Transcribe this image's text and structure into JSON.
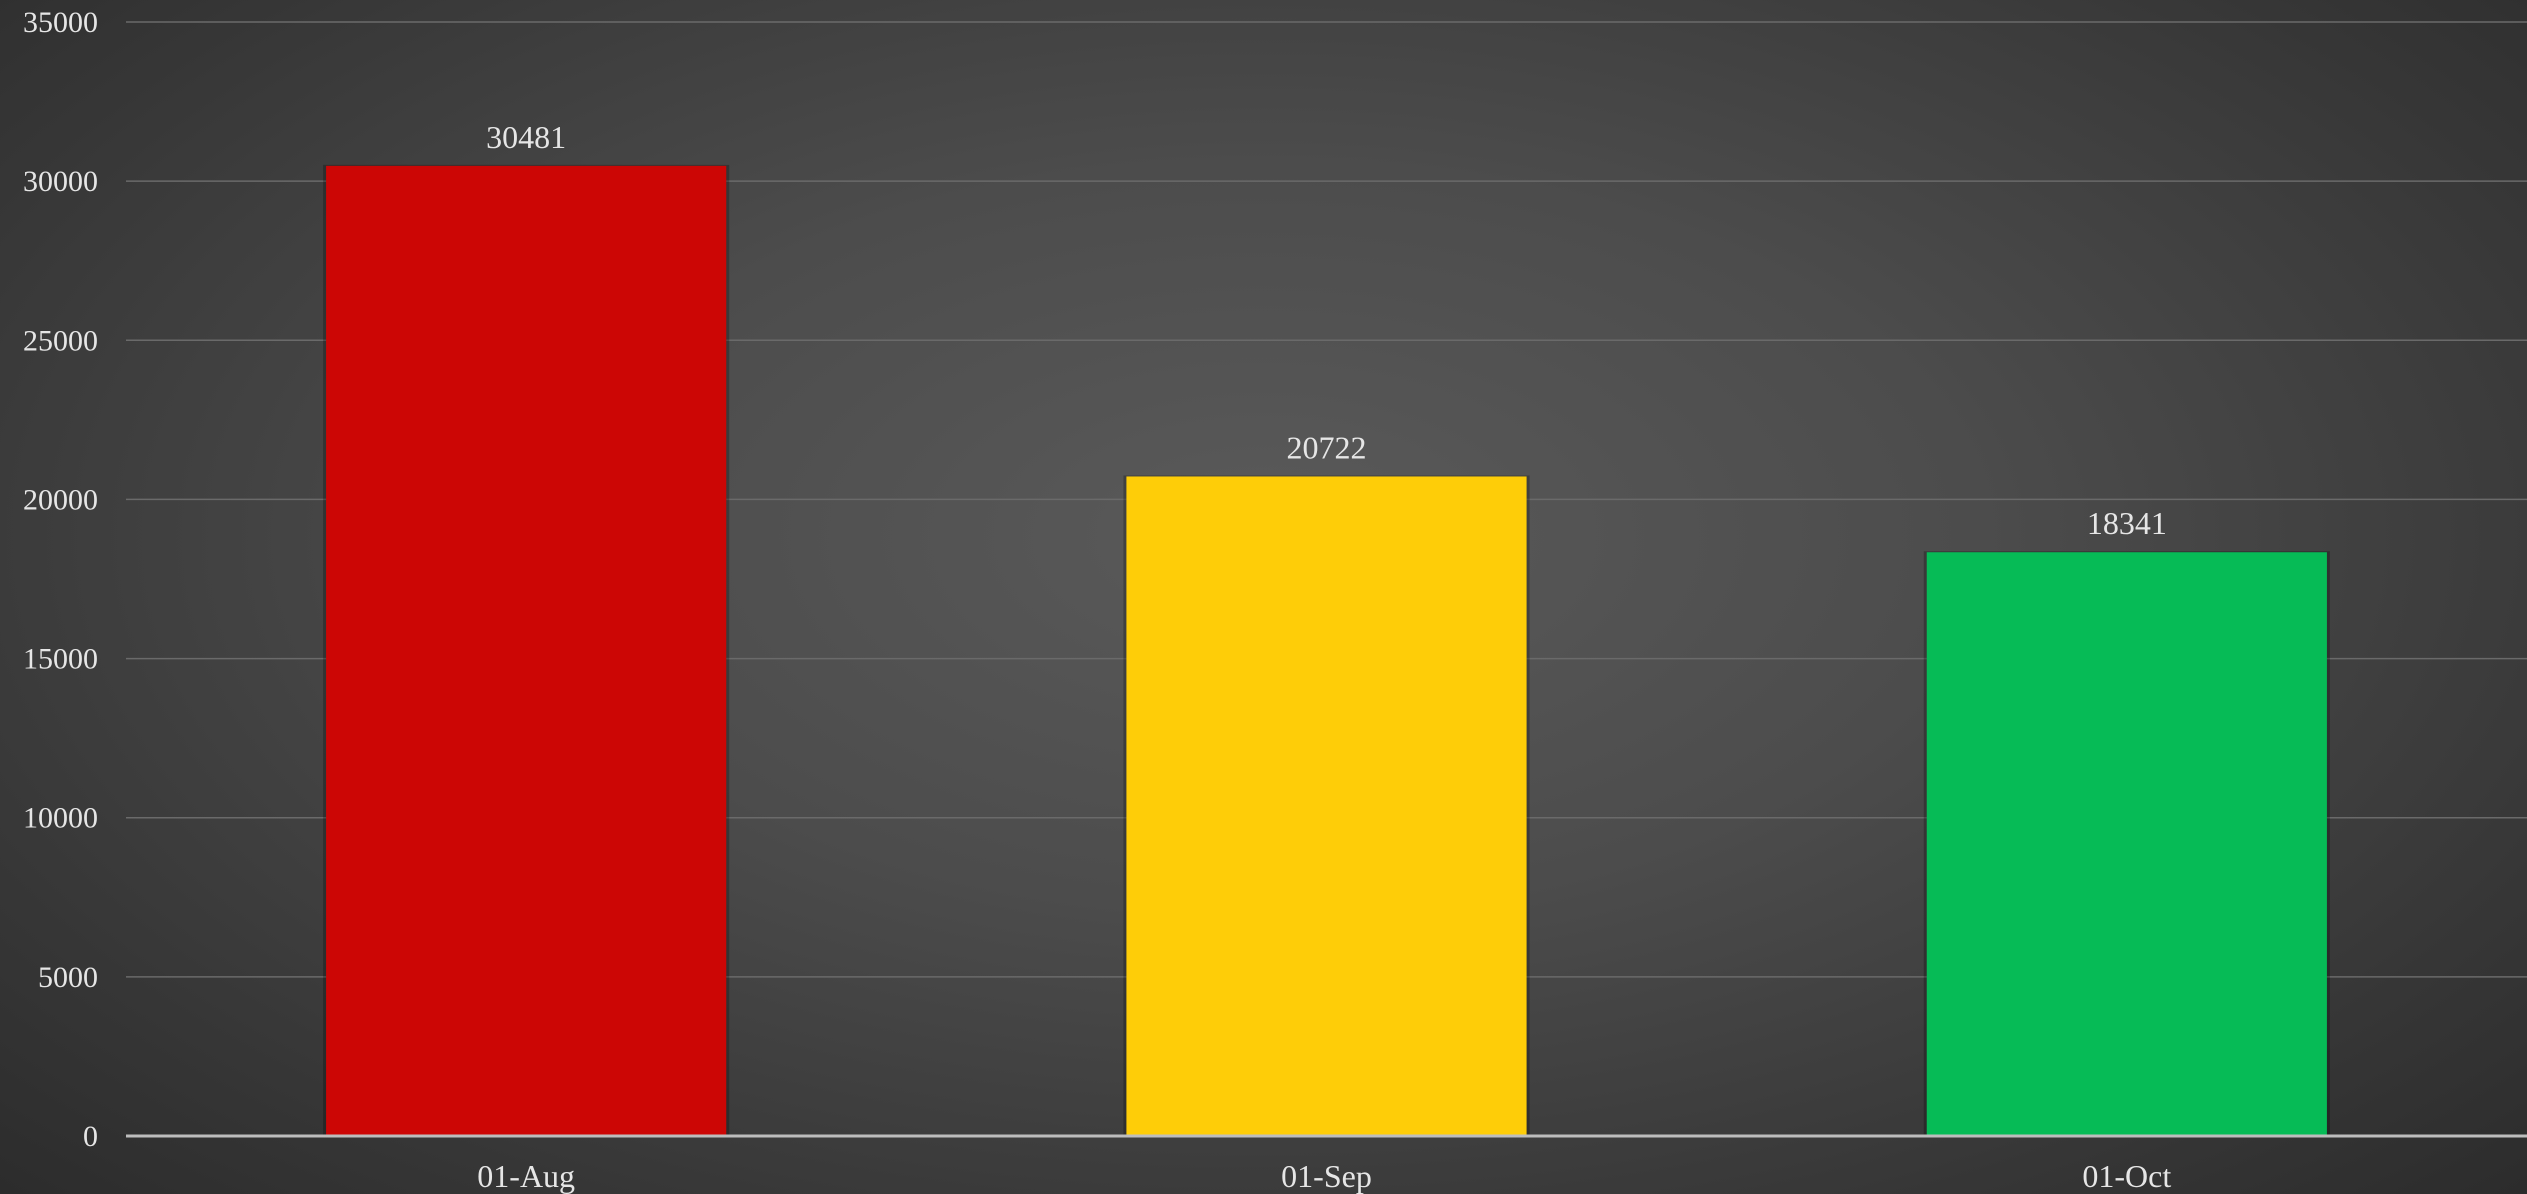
{
  "chart_data": {
    "type": "bar",
    "title": "",
    "xlabel": "",
    "ylabel": "",
    "categories": [
      "01-Aug",
      "01-Sep",
      "01-Oct"
    ],
    "values": [
      30481,
      20722,
      18341
    ],
    "data_labels": [
      "30481",
      "20722",
      "18341"
    ],
    "bar_colors": [
      "#cc0605",
      "#fecd08",
      "#06bb56"
    ],
    "ylim": [
      0,
      35000
    ],
    "y_ticks": [
      0,
      5000,
      10000,
      15000,
      20000,
      25000,
      30000,
      35000
    ],
    "y_tick_labels": [
      "0",
      "5000",
      "10000",
      "15000",
      "20000",
      "25000",
      "30000",
      "35000"
    ],
    "grid": true,
    "legend": "none",
    "background": "dark gradient"
  }
}
